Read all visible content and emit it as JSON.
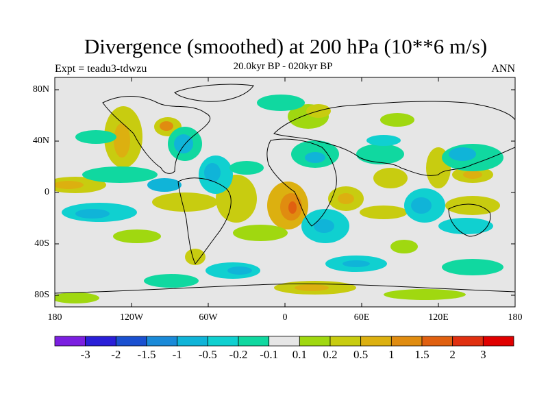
{
  "title": "Divergence (smoothed) at 200 hPa (10**6 m/s)",
  "subtitle": "20.0kyr BP - 020kyr BP",
  "experiment": "Expt = teadu3-tdwzu",
  "season": "ANN",
  "lat_labels": [
    "80N",
    "40N",
    "0",
    "40S",
    "80S"
  ],
  "lon_labels": [
    "180",
    "120W",
    "60W",
    "0",
    "60E",
    "120E",
    "180"
  ],
  "colorbar": {
    "colors": [
      "#7b1fe0",
      "#2a1fd8",
      "#1a50d0",
      "#1a8ad8",
      "#10b4d8",
      "#10d0d0",
      "#10d8a0",
      "#e6e6e6",
      "#a0d810",
      "#c8cc10",
      "#dcb010",
      "#e08c10",
      "#e06010",
      "#e03010",
      "#e00000"
    ],
    "labels": [
      "-3",
      "-2",
      "-1.5",
      "-1",
      "-0.5",
      "-0.2",
      "-0.1",
      "0.1",
      "0.2",
      "0.5",
      "1",
      "1.5",
      "2",
      "3"
    ]
  }
}
